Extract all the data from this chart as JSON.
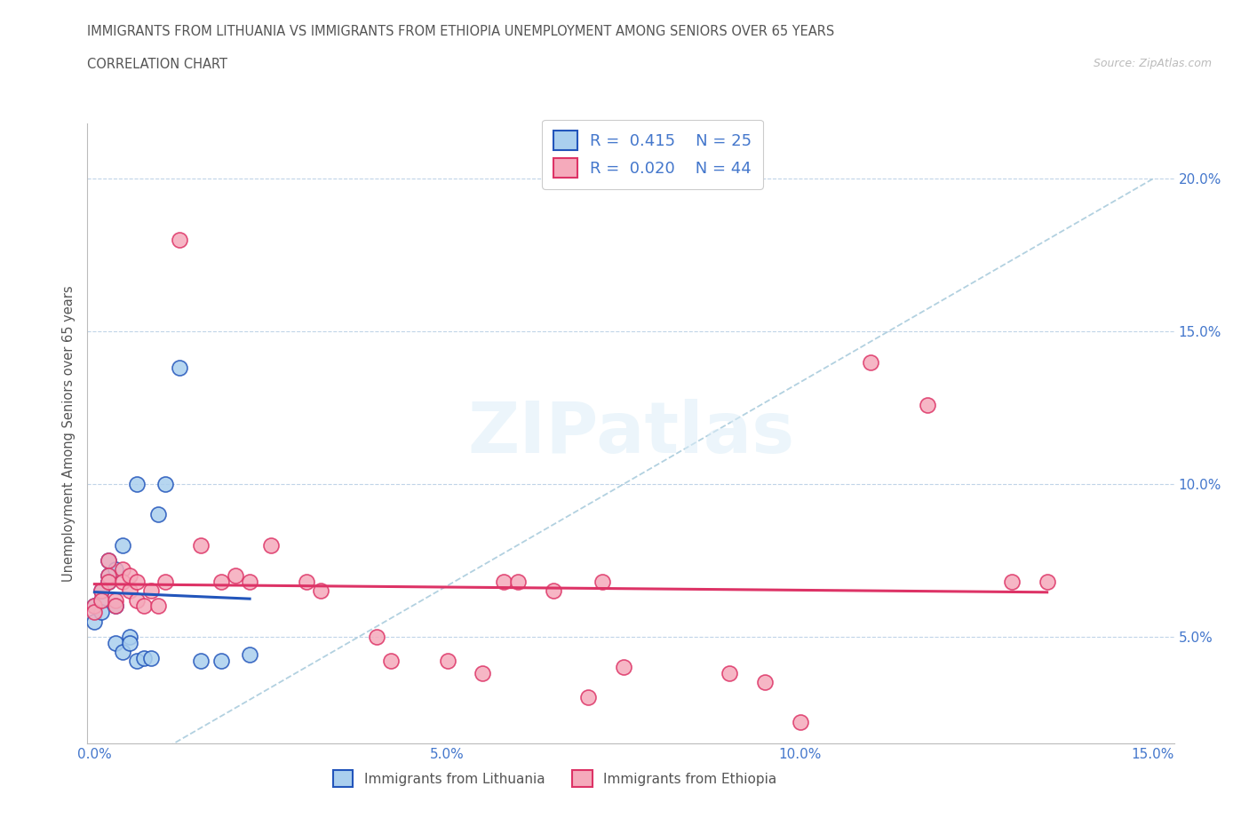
{
  "title_line1": "IMMIGRANTS FROM LITHUANIA VS IMMIGRANTS FROM ETHIOPIA UNEMPLOYMENT AMONG SENIORS OVER 65 YEARS",
  "title_line2": "CORRELATION CHART",
  "source": "Source: ZipAtlas.com",
  "ylabel": "Unemployment Among Seniors over 65 years",
  "watermark": "ZIPatlas",
  "legend_R1": "0.415",
  "legend_N1": "25",
  "legend_R2": "0.020",
  "legend_N2": "44",
  "color_lithuania": "#aacfee",
  "color_ethiopia": "#f5aabb",
  "color_lithuania_line": "#2255bb",
  "color_ethiopia_line": "#dd3366",
  "color_diagonal": "#aaccdd",
  "label_lithuania": "Immigrants from Lithuania",
  "label_ethiopia": "Immigrants from Ethiopia",
  "xlim": [
    -0.001,
    0.153
  ],
  "ylim": [
    0.015,
    0.218
  ],
  "xticks": [
    0.0,
    0.05,
    0.1,
    0.15
  ],
  "yticks": [
    0.05,
    0.1,
    0.15,
    0.2
  ],
  "lithuania_x": [
    0.0,
    0.0,
    0.001,
    0.001,
    0.001,
    0.002,
    0.002,
    0.002,
    0.003,
    0.003,
    0.003,
    0.004,
    0.004,
    0.005,
    0.005,
    0.006,
    0.006,
    0.007,
    0.008,
    0.009,
    0.01,
    0.012,
    0.015,
    0.018,
    0.022
  ],
  "lithuania_y": [
    0.06,
    0.055,
    0.062,
    0.058,
    0.065,
    0.07,
    0.068,
    0.075,
    0.072,
    0.06,
    0.048,
    0.08,
    0.045,
    0.05,
    0.048,
    0.1,
    0.042,
    0.043,
    0.043,
    0.09,
    0.1,
    0.138,
    0.042,
    0.042,
    0.044
  ],
  "ethiopia_x": [
    0.0,
    0.0,
    0.001,
    0.001,
    0.002,
    0.002,
    0.002,
    0.003,
    0.003,
    0.004,
    0.004,
    0.005,
    0.005,
    0.006,
    0.006,
    0.007,
    0.008,
    0.009,
    0.01,
    0.012,
    0.015,
    0.018,
    0.02,
    0.022,
    0.025,
    0.03,
    0.032,
    0.04,
    0.042,
    0.05,
    0.055,
    0.058,
    0.06,
    0.065,
    0.07,
    0.072,
    0.075,
    0.09,
    0.095,
    0.1,
    0.11,
    0.118,
    0.13,
    0.135
  ],
  "ethiopia_y": [
    0.06,
    0.058,
    0.065,
    0.062,
    0.075,
    0.07,
    0.068,
    0.062,
    0.06,
    0.072,
    0.068,
    0.065,
    0.07,
    0.062,
    0.068,
    0.06,
    0.065,
    0.06,
    0.068,
    0.18,
    0.08,
    0.068,
    0.07,
    0.068,
    0.08,
    0.068,
    0.065,
    0.05,
    0.042,
    0.042,
    0.038,
    0.068,
    0.068,
    0.065,
    0.03,
    0.068,
    0.04,
    0.038,
    0.035,
    0.022,
    0.14,
    0.126,
    0.068,
    0.068
  ]
}
